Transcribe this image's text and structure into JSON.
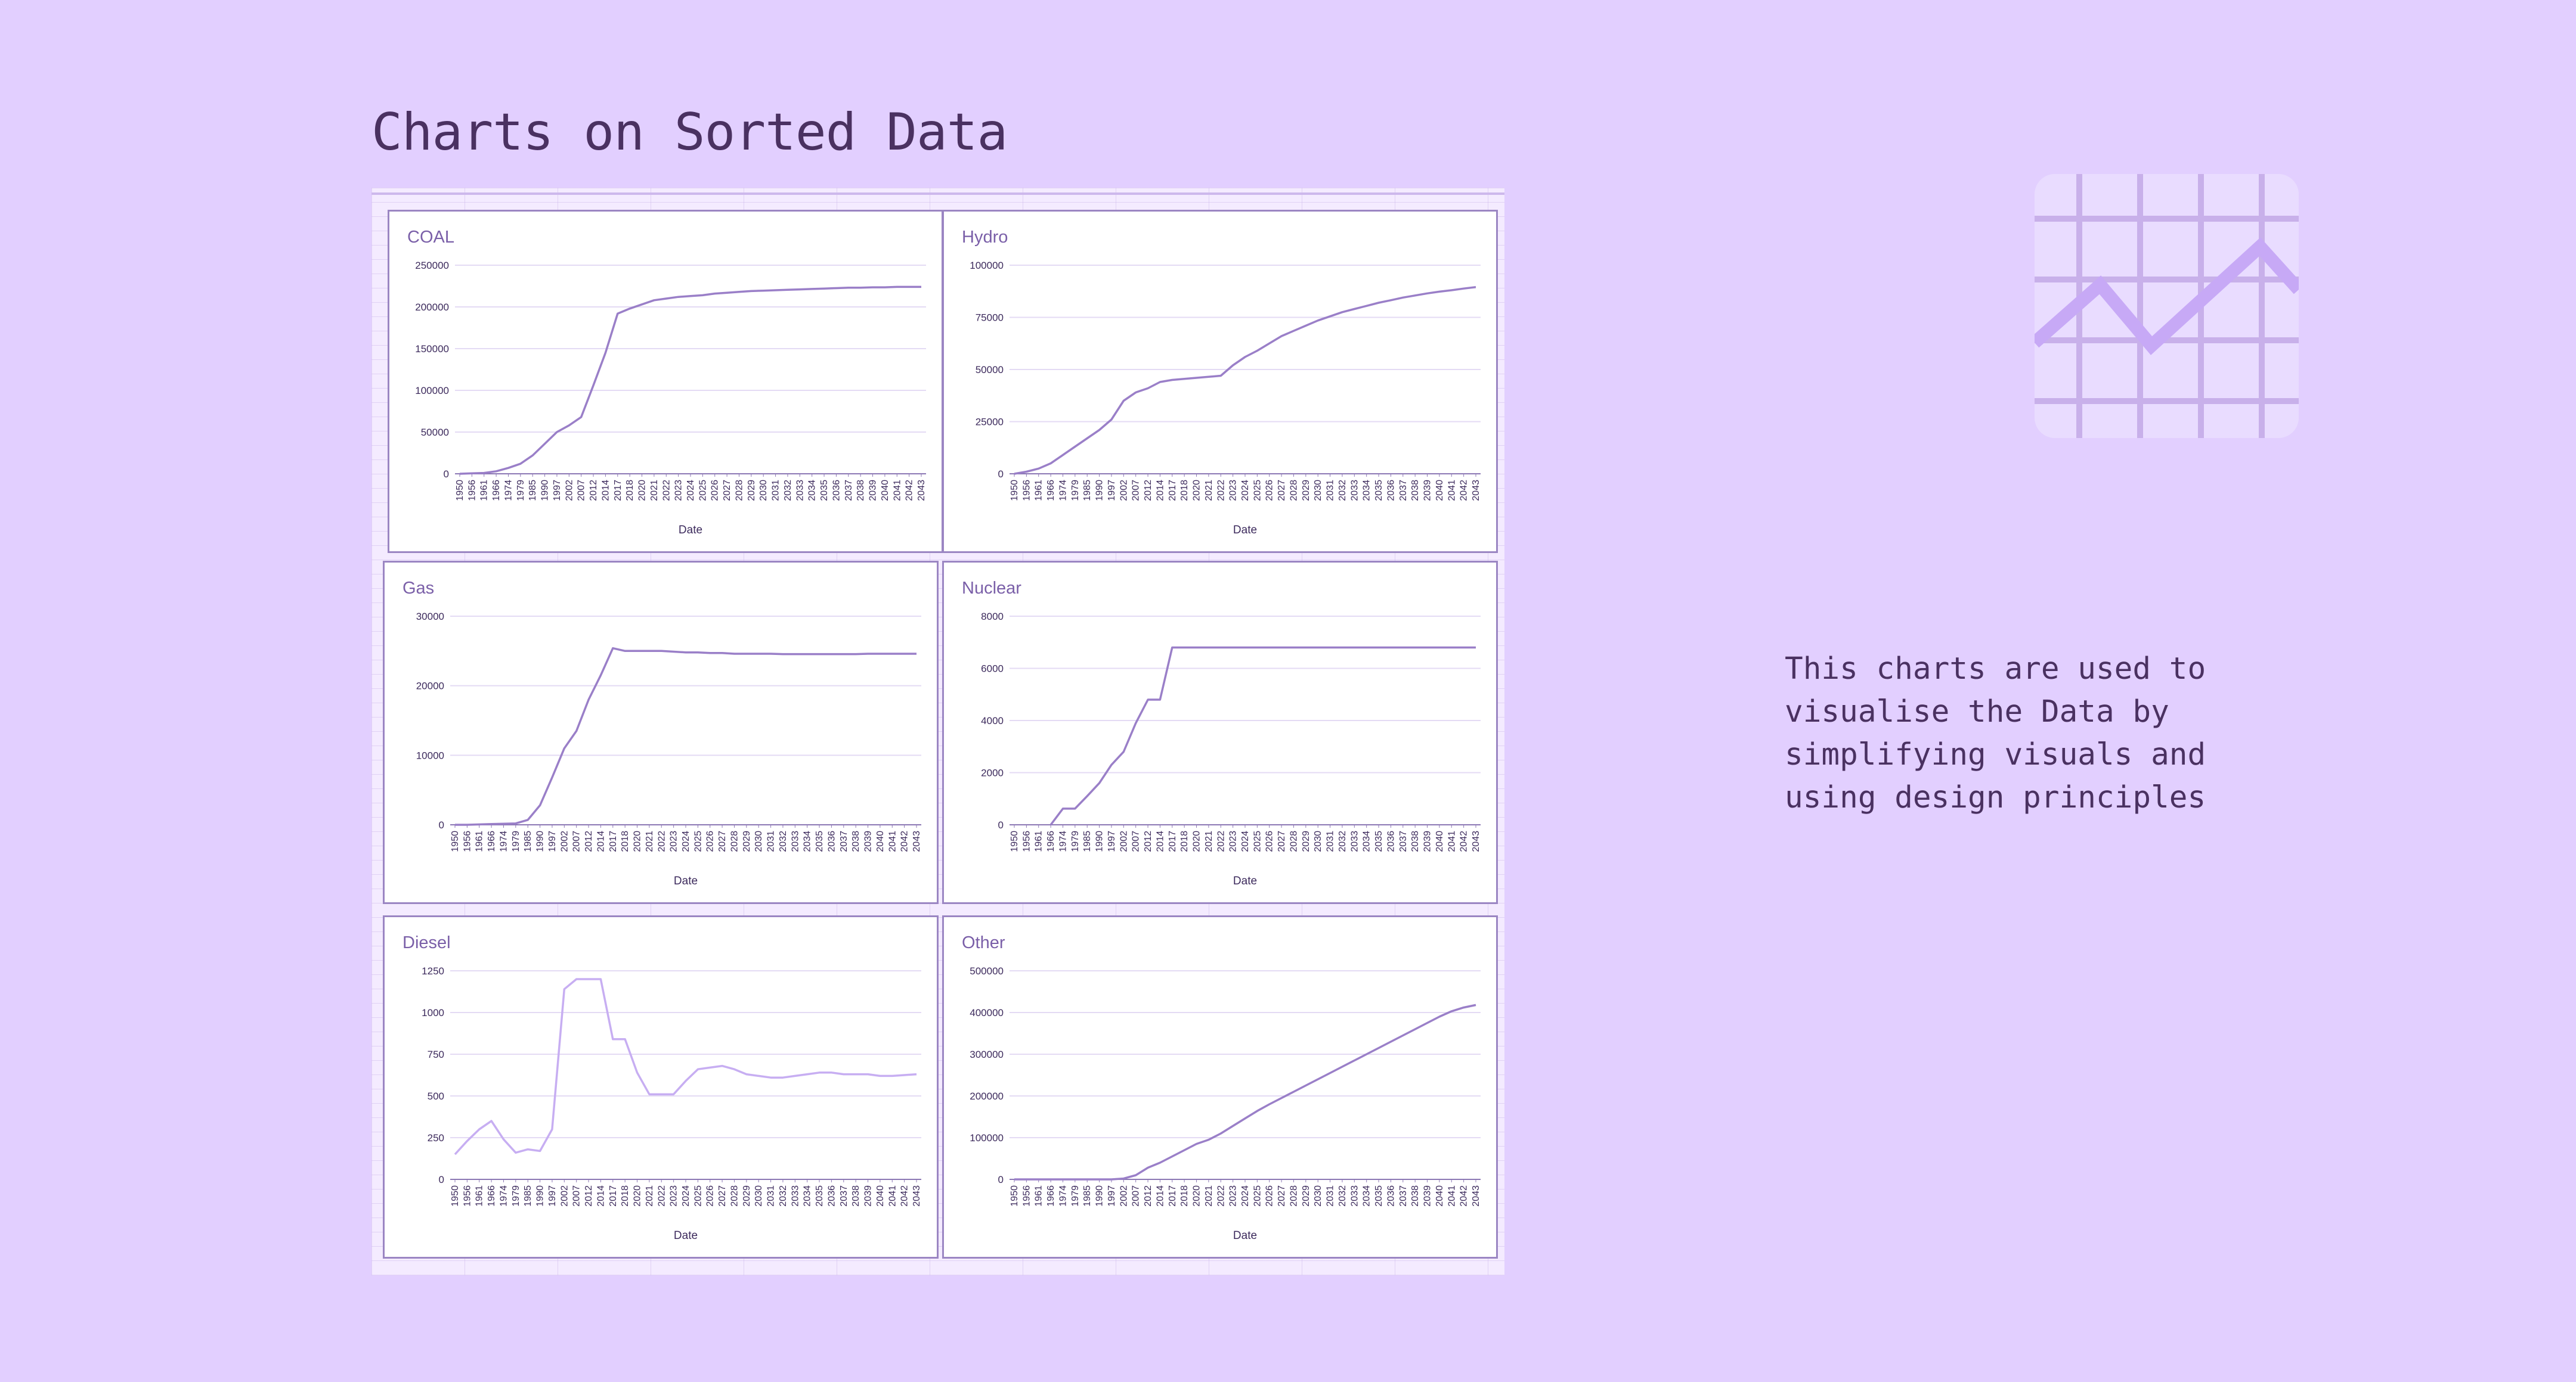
{
  "title": "Charts on Sorted Data",
  "description": "This charts are used to\nvisualise the Data by\nsimplifying visuals and\nusing design principles",
  "colors": {
    "background": "#e2cfff",
    "line": "#9a7fc8",
    "line_light": "#c7aef2",
    "axis_text": "#3c2a5c",
    "title_text": "#7a5fa8",
    "gridline": "#e4dbf4"
  },
  "icon": "line-chart-icon",
  "chart_data": [
    {
      "type": "line",
      "title": "COAL",
      "xlabel": "Date",
      "ylabel": "",
      "ylim": [
        0,
        250000
      ],
      "yticks": [
        "0",
        "50000",
        "100000",
        "150000",
        "200000",
        "250000"
      ],
      "x": [
        "1950",
        "1956",
        "1961",
        "1966",
        "1974",
        "1979",
        "1985",
        "1990",
        "1997",
        "2002",
        "2007",
        "2012",
        "2014",
        "2017",
        "2018",
        "2020",
        "2021",
        "2022",
        "2023",
        "2024",
        "2025",
        "2026",
        "2027",
        "2028",
        "2029",
        "2030",
        "2031",
        "2032",
        "2033",
        "2034",
        "2035",
        "2036",
        "2037",
        "2038",
        "2039",
        "2040",
        "2041",
        "2042",
        "2043"
      ],
      "values": [
        0,
        500,
        1000,
        3000,
        7000,
        12000,
        22000,
        36000,
        50000,
        58000,
        68000,
        106000,
        145000,
        192000,
        198000,
        203000,
        208000,
        210000,
        212000,
        213000,
        214000,
        216000,
        217000,
        218000,
        219000,
        219500,
        220000,
        220500,
        221000,
        221500,
        222000,
        222500,
        223000,
        223000,
        223500,
        223500,
        224000,
        224000,
        224000
      ]
    },
    {
      "type": "line",
      "title": "Hydro",
      "xlabel": "Date",
      "ylabel": "",
      "ylim": [
        0,
        100000
      ],
      "yticks": [
        "0",
        "25000",
        "50000",
        "75000",
        "100000"
      ],
      "x": [
        "1950",
        "1956",
        "1961",
        "1966",
        "1974",
        "1979",
        "1985",
        "1990",
        "1997",
        "2002",
        "2007",
        "2012",
        "2014",
        "2017",
        "2018",
        "2020",
        "2021",
        "2022",
        "2023",
        "2024",
        "2025",
        "2026",
        "2027",
        "2028",
        "2029",
        "2030",
        "2031",
        "2032",
        "2033",
        "2034",
        "2035",
        "2036",
        "2037",
        "2038",
        "2039",
        "2040",
        "2041",
        "2042",
        "2043"
      ],
      "values": [
        0,
        1000,
        2500,
        5000,
        9000,
        13000,
        17000,
        21000,
        26000,
        35000,
        39000,
        41000,
        44000,
        45000,
        45500,
        46000,
        46500,
        47000,
        52000,
        56000,
        59000,
        62500,
        66000,
        68500,
        71000,
        73500,
        75500,
        77500,
        79000,
        80500,
        82000,
        83200,
        84500,
        85500,
        86500,
        87300,
        88000,
        88800,
        89500
      ]
    },
    {
      "type": "line",
      "title": "Gas",
      "xlabel": "Date",
      "ylabel": "",
      "ylim": [
        0,
        30000
      ],
      "yticks": [
        "0",
        "10000",
        "20000",
        "30000"
      ],
      "x": [
        "1950",
        "1956",
        "1961",
        "1966",
        "1974",
        "1979",
        "1985",
        "1990",
        "1997",
        "2002",
        "2007",
        "2012",
        "2014",
        "2017",
        "2018",
        "2020",
        "2021",
        "2022",
        "2023",
        "2024",
        "2025",
        "2026",
        "2027",
        "2028",
        "2029",
        "2030",
        "2031",
        "2032",
        "2033",
        "2034",
        "2035",
        "2036",
        "2037",
        "2038",
        "2039",
        "2040",
        "2041",
        "2042",
        "2043"
      ],
      "values": [
        0,
        0,
        50,
        100,
        150,
        200,
        700,
        2800,
        6800,
        11000,
        13500,
        18000,
        21500,
        25400,
        25000,
        25000,
        25000,
        25000,
        24900,
        24800,
        24800,
        24700,
        24700,
        24600,
        24600,
        24600,
        24600,
        24550,
        24550,
        24550,
        24550,
        24550,
        24550,
        24550,
        24600,
        24600,
        24600,
        24600,
        24600
      ]
    },
    {
      "type": "line",
      "title": "Nuclear",
      "xlabel": "Date",
      "ylabel": "",
      "ylim": [
        0,
        8000
      ],
      "yticks": [
        "0",
        "2000",
        "4000",
        "6000",
        "8000"
      ],
      "x": [
        "1950",
        "1956",
        "1961",
        "1966",
        "1974",
        "1979",
        "1985",
        "1990",
        "1997",
        "2002",
        "2007",
        "2012",
        "2014",
        "2017",
        "2018",
        "2020",
        "2021",
        "2022",
        "2023",
        "2024",
        "2025",
        "2026",
        "2027",
        "2028",
        "2029",
        "2030",
        "2031",
        "2032",
        "2033",
        "2034",
        "2035",
        "2036",
        "2037",
        "2038",
        "2039",
        "2040",
        "2041",
        "2042",
        "2043"
      ],
      "values": [
        null,
        null,
        null,
        0,
        620,
        620,
        1100,
        1600,
        2300,
        2800,
        3900,
        4800,
        4800,
        6800,
        6800,
        6800,
        6800,
        6800,
        6800,
        6800,
        6800,
        6800,
        6800,
        6800,
        6800,
        6800,
        6800,
        6800,
        6800,
        6800,
        6800,
        6800,
        6800,
        6800,
        6800,
        6800,
        6800,
        6800,
        6800
      ]
    },
    {
      "type": "line",
      "title": "Diesel",
      "xlabel": "Date",
      "ylabel": "",
      "ylim": [
        0,
        1250
      ],
      "yticks": [
        "0",
        "250",
        "500",
        "750",
        "1000",
        "1250"
      ],
      "x": [
        "1950",
        "1956",
        "1961",
        "1966",
        "1974",
        "1979",
        "1985",
        "1990",
        "1997",
        "2002",
        "2007",
        "2012",
        "2014",
        "2017",
        "2018",
        "2020",
        "2021",
        "2022",
        "2023",
        "2024",
        "2025",
        "2026",
        "2027",
        "2028",
        "2029",
        "2030",
        "2031",
        "2032",
        "2033",
        "2034",
        "2035",
        "2036",
        "2037",
        "2038",
        "2039",
        "2040",
        "2041",
        "2042",
        "2043"
      ],
      "values": [
        150,
        230,
        300,
        350,
        240,
        160,
        180,
        170,
        300,
        1140,
        1200,
        1200,
        1200,
        840,
        840,
        640,
        510,
        510,
        510,
        590,
        660,
        670,
        680,
        660,
        630,
        620,
        610,
        610,
        620,
        630,
        640,
        640,
        630,
        630,
        630,
        620,
        620,
        625,
        630
      ]
    },
    {
      "type": "line",
      "title": "Other",
      "xlabel": "Date",
      "ylabel": "",
      "ylim": [
        0,
        500000
      ],
      "yticks": [
        "0",
        "100000",
        "200000",
        "300000",
        "400000",
        "500000"
      ],
      "x": [
        "1950",
        "1956",
        "1961",
        "1966",
        "1974",
        "1979",
        "1985",
        "1990",
        "1997",
        "2002",
        "2007",
        "2012",
        "2014",
        "2017",
        "2018",
        "2020",
        "2021",
        "2022",
        "2023",
        "2024",
        "2025",
        "2026",
        "2027",
        "2028",
        "2029",
        "2030",
        "2031",
        "2032",
        "2033",
        "2034",
        "2035",
        "2036",
        "2037",
        "2038",
        "2039",
        "2040",
        "2041",
        "2042",
        "2043"
      ],
      "values": [
        0,
        0,
        0,
        0,
        0,
        0,
        0,
        0,
        0,
        2000,
        10000,
        28000,
        40000,
        55000,
        70000,
        85000,
        95000,
        110000,
        128000,
        146000,
        164000,
        180000,
        195000,
        210000,
        225000,
        240000,
        255000,
        270000,
        285000,
        300000,
        315000,
        330000,
        345000,
        360000,
        375000,
        390000,
        403000,
        412000,
        418000
      ]
    }
  ]
}
